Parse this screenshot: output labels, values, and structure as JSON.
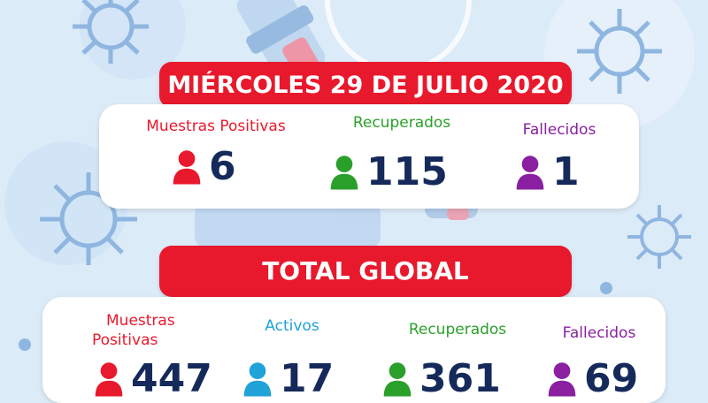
{
  "colors": {
    "banner": "#e8192c",
    "positivas": "#e8192c",
    "recuperados": "#2aa02a",
    "fallecidos": "#8a1fa0",
    "activos": "#1fa3d8",
    "number": "#152a5a"
  },
  "daily": {
    "date_title": "MIÉRCOLES 29 DE JULIO 2020",
    "positivas": {
      "label": "Muestras Positivas",
      "value": "6",
      "icon": "person-icon"
    },
    "recuperados": {
      "label": "Recuperados",
      "value": "115",
      "icon": "person-icon"
    },
    "fallecidos": {
      "label": "Fallecidos",
      "value": "1",
      "icon": "person-icon"
    }
  },
  "total": {
    "title": "TOTAL GLOBAL",
    "positivas": {
      "label_line1": "Muestras",
      "label_line2": "Positivas",
      "value": "447",
      "icon": "person-icon"
    },
    "activos": {
      "label": "Activos",
      "value": "17",
      "icon": "person-icon"
    },
    "recuperados": {
      "label": "Recuperados",
      "value": "361",
      "icon": "person-icon"
    },
    "fallecidos": {
      "label": "Fallecidos",
      "value": "69",
      "icon": "person-icon"
    }
  }
}
